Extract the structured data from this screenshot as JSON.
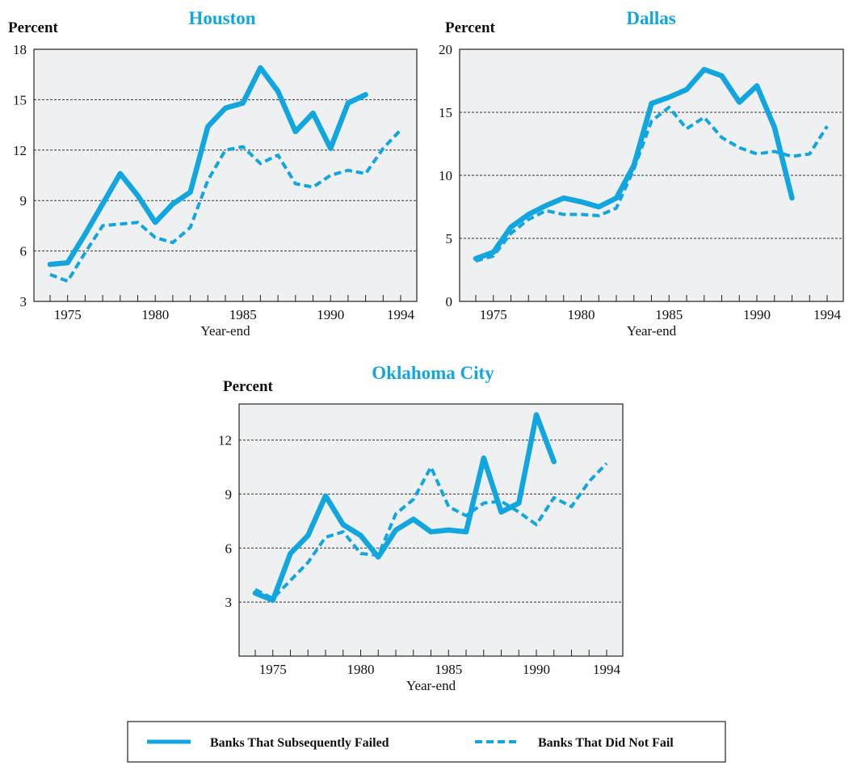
{
  "colors": {
    "series": "#12a6e0",
    "plot_bg": "#eef0f2"
  },
  "legend": {
    "items": [
      {
        "label": "Banks That Subsequently Failed",
        "style": "solid"
      },
      {
        "label": "Banks That Did Not Fail",
        "style": "dashed"
      }
    ]
  },
  "chart_data": [
    {
      "type": "line",
      "title": "Houston",
      "ylabel": "Percent",
      "xlabel": "Year-end",
      "xlim": [
        1974,
        1994
      ],
      "ylim": [
        3,
        18
      ],
      "xticks": [
        1975,
        1980,
        1985,
        1990,
        1994
      ],
      "yticks": [
        3,
        6,
        9,
        12,
        15,
        18
      ],
      "grid": true,
      "series": [
        {
          "style": "solid",
          "x": [
            1974,
            1975,
            1976,
            1977,
            1978,
            1979,
            1980,
            1981,
            1982,
            1983,
            1984,
            1985,
            1986,
            1987,
            1988,
            1989,
            1990,
            1991,
            1992
          ],
          "y": [
            5.2,
            5.3,
            7.0,
            8.8,
            10.6,
            9.3,
            7.7,
            8.8,
            9.5,
            13.4,
            14.5,
            14.8,
            16.9,
            15.5,
            13.1,
            14.2,
            12.1,
            14.8,
            15.3
          ]
        },
        {
          "style": "dashed",
          "x": [
            1974,
            1975,
            1976,
            1977,
            1978,
            1979,
            1980,
            1981,
            1982,
            1983,
            1984,
            1985,
            1986,
            1987,
            1988,
            1989,
            1990,
            1991,
            1992,
            1993,
            1994
          ],
          "y": [
            4.6,
            4.2,
            5.9,
            7.5,
            7.6,
            7.7,
            6.8,
            6.5,
            7.4,
            10.2,
            12.0,
            12.2,
            11.2,
            11.7,
            10.0,
            9.8,
            10.5,
            10.8,
            10.6,
            12.1,
            13.2
          ]
        }
      ]
    },
    {
      "type": "line",
      "title": "Dallas",
      "ylabel": "Percent",
      "xlabel": "Year-end",
      "xlim": [
        1974,
        1994
      ],
      "ylim": [
        0,
        20
      ],
      "xticks": [
        1975,
        1980,
        1985,
        1990,
        1994
      ],
      "yticks": [
        0,
        5,
        10,
        15,
        20
      ],
      "grid": true,
      "series": [
        {
          "style": "solid",
          "x": [
            1974,
            1975,
            1976,
            1977,
            1978,
            1979,
            1980,
            1981,
            1982,
            1983,
            1984,
            1985,
            1986,
            1987,
            1988,
            1989,
            1990,
            1991,
            1992
          ],
          "y": [
            3.4,
            3.9,
            5.9,
            6.9,
            7.6,
            8.2,
            7.9,
            7.5,
            8.2,
            10.8,
            15.7,
            16.2,
            16.8,
            18.4,
            17.9,
            15.8,
            17.1,
            13.8,
            8.2
          ]
        },
        {
          "style": "dashed",
          "x": [
            1974,
            1975,
            1976,
            1977,
            1978,
            1979,
            1980,
            1981,
            1982,
            1983,
            1984,
            1985,
            1986,
            1987,
            1988,
            1989,
            1990,
            1991,
            1992,
            1993,
            1994
          ],
          "y": [
            3.2,
            3.6,
            5.4,
            6.5,
            7.2,
            6.9,
            6.9,
            6.8,
            7.4,
            10.5,
            14.3,
            15.4,
            13.7,
            14.6,
            13.0,
            12.2,
            11.7,
            11.9,
            11.5,
            11.7,
            13.9
          ]
        }
      ]
    },
    {
      "type": "line",
      "title": "Oklahoma City",
      "ylabel": "Percent",
      "xlabel": "Year-end",
      "xlim": [
        1974,
        1994
      ],
      "ylim": [
        0,
        14
      ],
      "xticks": [
        1975,
        1980,
        1985,
        1990,
        1994
      ],
      "yticks": [
        3,
        6,
        9,
        12
      ],
      "grid": true,
      "series": [
        {
          "style": "solid",
          "x": [
            1974,
            1975,
            1976,
            1977,
            1978,
            1979,
            1980,
            1981,
            1982,
            1983,
            1984,
            1985,
            1986,
            1987,
            1988,
            1989,
            1990,
            1991
          ],
          "y": [
            3.5,
            3.1,
            5.7,
            6.7,
            8.9,
            7.3,
            6.7,
            5.5,
            7.0,
            7.6,
            6.9,
            7.0,
            6.9,
            11.0,
            8.0,
            8.5,
            13.4,
            10.8
          ]
        },
        {
          "style": "dashed",
          "x": [
            1974,
            1975,
            1976,
            1977,
            1978,
            1979,
            1980,
            1981,
            1982,
            1983,
            1984,
            1985,
            1986,
            1987,
            1988,
            1989,
            1990,
            1991,
            1992,
            1993,
            1994
          ],
          "y": [
            3.7,
            3.2,
            4.2,
            5.2,
            6.6,
            6.9,
            5.7,
            5.6,
            7.9,
            8.7,
            10.5,
            8.3,
            7.8,
            8.5,
            8.6,
            8.0,
            7.3,
            8.8,
            8.3,
            9.7,
            10.7
          ]
        }
      ]
    }
  ]
}
